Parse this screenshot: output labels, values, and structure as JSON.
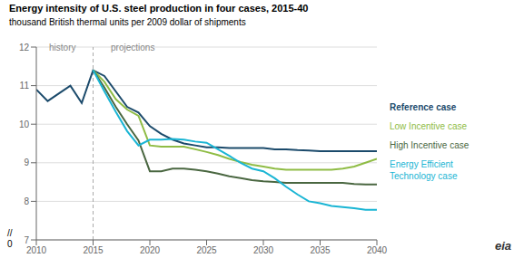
{
  "chart_data": {
    "type": "line",
    "title": "Energy intensity of U.S. steel production in four cases, 2015-40",
    "subtitle": "thousand British thermal units per 2009 dollar of shipments",
    "x": [
      2010,
      2011,
      2012,
      2013,
      2014,
      2015,
      2016,
      2017,
      2018,
      2019,
      2020,
      2021,
      2022,
      2023,
      2024,
      2025,
      2026,
      2027,
      2028,
      2029,
      2030,
      2031,
      2032,
      2033,
      2034,
      2035,
      2036,
      2037,
      2038,
      2039,
      2040
    ],
    "xlim": [
      2010,
      2040
    ],
    "xticks": [
      2010,
      2015,
      2020,
      2025,
      2030,
      2035,
      2040
    ],
    "ylim": [
      7,
      12
    ],
    "yticks": [
      7,
      8,
      9,
      10,
      11,
      12
    ],
    "grid": true,
    "legend": "right",
    "series": [
      {
        "name": "Reference case",
        "color": "#1b4a6b",
        "values": [
          10.9,
          10.6,
          10.8,
          11.0,
          10.55,
          11.4,
          11.25,
          10.85,
          10.45,
          10.3,
          9.95,
          9.75,
          9.6,
          9.5,
          9.45,
          9.4,
          9.4,
          9.38,
          9.38,
          9.38,
          9.38,
          9.35,
          9.35,
          9.33,
          9.32,
          9.3,
          9.3,
          9.3,
          9.3,
          9.3,
          9.3
        ]
      },
      {
        "name": "Low Incentive case",
        "color": "#8fbc45",
        "values": [
          null,
          null,
          null,
          null,
          null,
          11.4,
          11.1,
          10.65,
          10.38,
          10.22,
          9.45,
          9.42,
          9.42,
          9.42,
          9.35,
          9.28,
          9.2,
          9.1,
          9.02,
          8.95,
          8.9,
          8.85,
          8.82,
          8.82,
          8.82,
          8.82,
          8.82,
          8.85,
          8.9,
          9.0,
          9.1
        ]
      },
      {
        "name": "High Incentive case",
        "color": "#4a6741",
        "values": [
          null,
          null,
          null,
          null,
          null,
          11.4,
          10.95,
          10.45,
          10.0,
          9.58,
          8.78,
          8.78,
          8.85,
          8.85,
          8.82,
          8.78,
          8.72,
          8.65,
          8.6,
          8.55,
          8.52,
          8.5,
          8.48,
          8.48,
          8.48,
          8.48,
          8.48,
          8.48,
          8.45,
          8.44,
          8.44
        ]
      },
      {
        "name": "Energy Efficient\nTechnology case",
        "color": "#1ab5d4",
        "values": [
          null,
          null,
          null,
          null,
          null,
          11.4,
          10.85,
          10.32,
          9.82,
          9.45,
          9.6,
          9.6,
          9.62,
          9.6,
          9.55,
          9.52,
          9.35,
          9.18,
          9.0,
          8.85,
          8.78,
          8.6,
          8.38,
          8.18,
          8.0,
          7.95,
          7.88,
          7.85,
          7.82,
          7.78,
          7.78
        ]
      }
    ],
    "annotations": [
      {
        "x": 2015,
        "line_style": "dashed"
      },
      {
        "text": "history",
        "x": 2012.3,
        "y": 11.78
      },
      {
        "text": "projections",
        "x": 2018.5,
        "y": 11.78
      },
      {
        "text": "//"
      },
      {
        "text": "0"
      },
      {
        "text": "eia"
      }
    ]
  }
}
